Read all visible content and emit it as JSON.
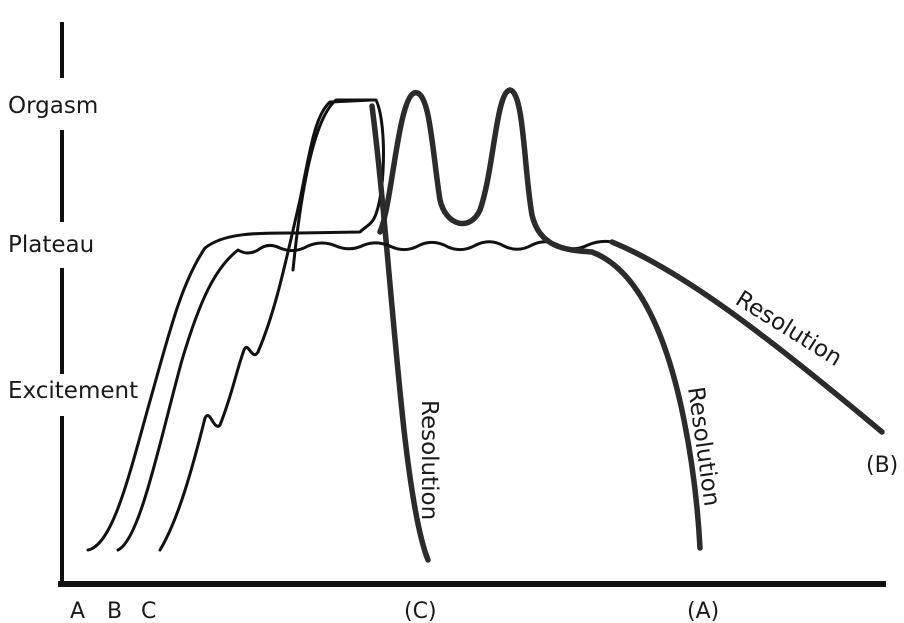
{
  "y_axis": {
    "labels": [
      "Orgasm",
      "Plateau",
      "Excitement"
    ]
  },
  "x_axis": {
    "labels": [
      "A",
      "B",
      "C",
      "(C)",
      "(A)"
    ]
  },
  "curves": {
    "A": {
      "resolution_label": "Resolution"
    },
    "B": {
      "resolution_label": "Resolution",
      "end_label": "(B)"
    },
    "C": {
      "resolution_label": "Resolution"
    }
  }
}
